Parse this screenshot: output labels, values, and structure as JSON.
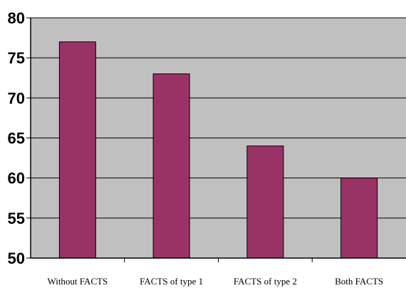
{
  "chart_data": {
    "type": "bar",
    "categories": [
      "Without FACTS",
      "FACTS of type 1",
      "FACTS of type 2",
      "Both FACTS"
    ],
    "values": [
      77,
      73,
      64,
      60
    ],
    "ylim": [
      50,
      80
    ],
    "yticks": [
      50,
      55,
      60,
      65,
      70,
      75,
      80
    ],
    "grid": true,
    "colors": {
      "bar": "#993366",
      "plot_background": "#c0c0c0",
      "gridline": "#000000"
    }
  }
}
